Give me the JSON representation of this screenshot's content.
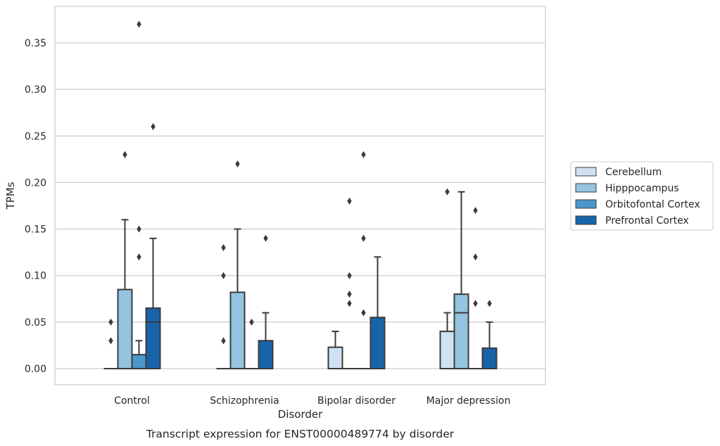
{
  "chart_data": {
    "type": "box",
    "xlabel": "Disorder",
    "ylabel": "TPMs",
    "caption": "Transcript expression for ENST00000489774 by disorder",
    "ylim": [
      -0.018,
      0.389
    ],
    "yticks": [
      "0.00",
      "0.05",
      "0.10",
      "0.15",
      "0.20",
      "0.25",
      "0.30",
      "0.35"
    ],
    "grid": "horizontal",
    "legend_position": "right",
    "categories": [
      "Control",
      "Schizophrenia",
      "Bipolar disorder",
      "Major depression"
    ],
    "series": [
      {
        "name": "Cerebellum",
        "color": "#d0e1f2",
        "boxes": [
          {
            "min": 0,
            "q1": 0,
            "median": 0,
            "q3": 0,
            "max": 0,
            "outliers": [
              0.03,
              0.05
            ]
          },
          {
            "min": 0,
            "q1": 0,
            "median": 0,
            "q3": 0,
            "max": 0,
            "outliers": [
              0.03,
              0.1,
              0.13
            ]
          },
          {
            "min": 0,
            "q1": 0,
            "median": 0,
            "q3": 0.023,
            "max": 0.04,
            "outliers": []
          },
          {
            "min": 0,
            "q1": 0,
            "median": 0,
            "q3": 0.04,
            "max": 0.06,
            "outliers": [
              0.19
            ]
          }
        ]
      },
      {
        "name": "Hipppocampus",
        "color": "#94c4df",
        "boxes": [
          {
            "min": 0,
            "q1": 0,
            "median": 0,
            "q3": 0.085,
            "max": 0.16,
            "outliers": [
              0.23
            ]
          },
          {
            "min": 0,
            "q1": 0,
            "median": 0,
            "q3": 0.082,
            "max": 0.15,
            "outliers": [
              0.22
            ]
          },
          {
            "min": 0,
            "q1": 0,
            "median": 0,
            "q3": 0,
            "max": 0,
            "outliers": [
              0.07,
              0.08,
              0.1,
              0.18
            ]
          },
          {
            "min": 0,
            "q1": 0,
            "median": 0.06,
            "q3": 0.08,
            "max": 0.19,
            "outliers": []
          }
        ]
      },
      {
        "name": "Orbitofontal Cortex",
        "color": "#4a98c9",
        "boxes": [
          {
            "min": 0,
            "q1": 0,
            "median": 0,
            "q3": 0.015,
            "max": 0.03,
            "outliers": [
              0.12,
              0.15,
              0.37
            ]
          },
          {
            "min": 0,
            "q1": 0,
            "median": 0,
            "q3": 0,
            "max": 0,
            "outliers": [
              0.05
            ]
          },
          {
            "min": 0,
            "q1": 0,
            "median": 0,
            "q3": 0,
            "max": 0,
            "outliers": [
              0.06,
              0.14,
              0.23
            ]
          },
          {
            "min": 0,
            "q1": 0,
            "median": 0,
            "q3": 0,
            "max": 0,
            "outliers": [
              0.07,
              0.12,
              0.17
            ]
          }
        ]
      },
      {
        "name": "Prefrontal Cortex",
        "color": "#1764ab",
        "boxes": [
          {
            "min": 0,
            "q1": 0,
            "median": 0.05,
            "q3": 0.065,
            "max": 0.14,
            "outliers": [
              0.26
            ]
          },
          {
            "min": 0,
            "q1": 0,
            "median": 0,
            "q3": 0.03,
            "max": 0.06,
            "outliers": [
              0.14
            ]
          },
          {
            "min": 0,
            "q1": 0,
            "median": 0,
            "q3": 0.055,
            "max": 0.12,
            "outliers": []
          },
          {
            "min": 0,
            "q1": 0,
            "median": 0,
            "q3": 0.022,
            "max": 0.05,
            "outliers": [
              0.07
            ]
          }
        ]
      }
    ]
  }
}
